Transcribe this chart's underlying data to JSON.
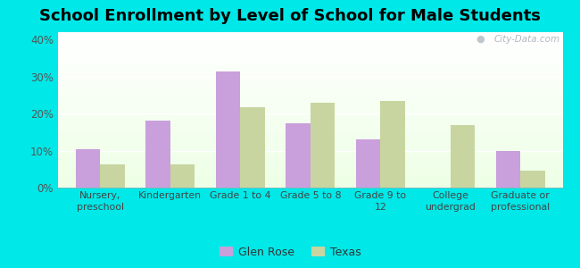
{
  "title": "School Enrollment by Level of School for Male Students",
  "categories": [
    "Nursery,\npreschool",
    "Kindergarten",
    "Grade 1 to 4",
    "Grade 5 to 8",
    "Grade 9 to\n12",
    "College\nundergrad",
    "Graduate or\nprofessional"
  ],
  "glen_rose": [
    10.5,
    18.0,
    31.5,
    17.5,
    13.0,
    0.0,
    9.8
  ],
  "texas": [
    6.2,
    6.2,
    21.8,
    23.0,
    23.5,
    17.0,
    4.5
  ],
  "glen_rose_color": "#c9a0dc",
  "texas_color": "#c8d5a0",
  "background_color": "#00e8e8",
  "ylim": [
    0,
    42
  ],
  "yticks": [
    0,
    10,
    20,
    30,
    40
  ],
  "ytick_labels": [
    "0%",
    "10%",
    "20%",
    "30%",
    "40%"
  ],
  "title_fontsize": 13,
  "legend_labels": [
    "Glen Rose",
    "Texas"
  ],
  "bar_width": 0.35,
  "watermark": "City-Data.com"
}
